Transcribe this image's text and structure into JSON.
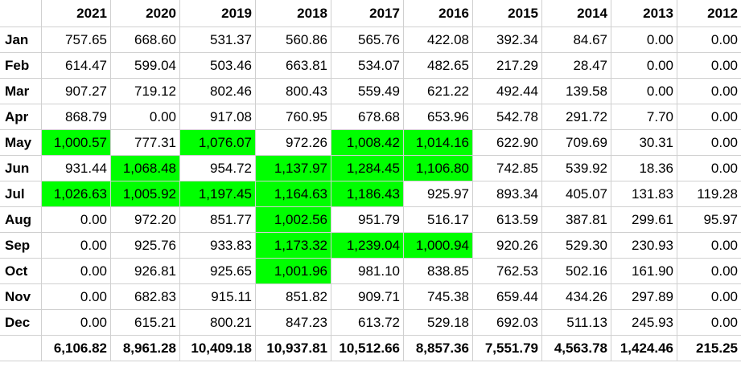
{
  "table": {
    "highlight_color": "#00ff00",
    "years": [
      "2021",
      "2020",
      "2019",
      "2018",
      "2017",
      "2016",
      "2015",
      "2014",
      "2013",
      "2012"
    ],
    "rows": [
      {
        "month": "Jan",
        "values": [
          "757.65",
          "668.60",
          "531.37",
          "560.86",
          "565.76",
          "422.08",
          "392.34",
          "84.67",
          "0.00",
          "0.00"
        ],
        "highlight": [
          false,
          false,
          false,
          false,
          false,
          false,
          false,
          false,
          false,
          false
        ]
      },
      {
        "month": "Feb",
        "values": [
          "614.47",
          "599.04",
          "503.46",
          "663.81",
          "534.07",
          "482.65",
          "217.29",
          "28.47",
          "0.00",
          "0.00"
        ],
        "highlight": [
          false,
          false,
          false,
          false,
          false,
          false,
          false,
          false,
          false,
          false
        ]
      },
      {
        "month": "Mar",
        "values": [
          "907.27",
          "719.12",
          "802.46",
          "800.43",
          "559.49",
          "621.22",
          "492.44",
          "139.58",
          "0.00",
          "0.00"
        ],
        "highlight": [
          false,
          false,
          false,
          false,
          false,
          false,
          false,
          false,
          false,
          false
        ]
      },
      {
        "month": "Apr",
        "values": [
          "868.79",
          "0.00",
          "917.08",
          "760.95",
          "678.68",
          "653.96",
          "542.78",
          "291.72",
          "7.70",
          "0.00"
        ],
        "highlight": [
          false,
          false,
          false,
          false,
          false,
          false,
          false,
          false,
          false,
          false
        ]
      },
      {
        "month": "May",
        "values": [
          "1,000.57",
          "777.31",
          "1,076.07",
          "972.26",
          "1,008.42",
          "1,014.16",
          "622.90",
          "709.69",
          "30.31",
          "0.00"
        ],
        "highlight": [
          true,
          false,
          true,
          false,
          true,
          true,
          false,
          false,
          false,
          false
        ]
      },
      {
        "month": "Jun",
        "values": [
          "931.44",
          "1,068.48",
          "954.72",
          "1,137.97",
          "1,284.45",
          "1,106.80",
          "742.85",
          "539.92",
          "18.36",
          "0.00"
        ],
        "highlight": [
          false,
          true,
          false,
          true,
          true,
          true,
          false,
          false,
          false,
          false
        ]
      },
      {
        "month": "Jul",
        "values": [
          "1,026.63",
          "1,005.92",
          "1,197.45",
          "1,164.63",
          "1,186.43",
          "925.97",
          "893.34",
          "405.07",
          "131.83",
          "119.28"
        ],
        "highlight": [
          true,
          true,
          true,
          true,
          true,
          false,
          false,
          false,
          false,
          false
        ]
      },
      {
        "month": "Aug",
        "values": [
          "0.00",
          "972.20",
          "851.77",
          "1,002.56",
          "951.79",
          "516.17",
          "613.59",
          "387.81",
          "299.61",
          "95.97"
        ],
        "highlight": [
          false,
          false,
          false,
          true,
          false,
          false,
          false,
          false,
          false,
          false
        ]
      },
      {
        "month": "Sep",
        "values": [
          "0.00",
          "925.76",
          "933.83",
          "1,173.32",
          "1,239.04",
          "1,000.94",
          "920.26",
          "529.30",
          "230.93",
          "0.00"
        ],
        "highlight": [
          false,
          false,
          false,
          true,
          true,
          true,
          false,
          false,
          false,
          false
        ]
      },
      {
        "month": "Oct",
        "values": [
          "0.00",
          "926.81",
          "925.65",
          "1,001.96",
          "981.10",
          "838.85",
          "762.53",
          "502.16",
          "161.90",
          "0.00"
        ],
        "highlight": [
          false,
          false,
          false,
          true,
          false,
          false,
          false,
          false,
          false,
          false
        ]
      },
      {
        "month": "Nov",
        "values": [
          "0.00",
          "682.83",
          "915.11",
          "851.82",
          "909.71",
          "745.38",
          "659.44",
          "434.26",
          "297.89",
          "0.00"
        ],
        "highlight": [
          false,
          false,
          false,
          false,
          false,
          false,
          false,
          false,
          false,
          false
        ]
      },
      {
        "month": "Dec",
        "values": [
          "0.00",
          "615.21",
          "800.21",
          "847.23",
          "613.72",
          "529.18",
          "692.03",
          "511.13",
          "245.93",
          "0.00"
        ],
        "highlight": [
          false,
          false,
          false,
          false,
          false,
          false,
          false,
          false,
          false,
          false
        ]
      }
    ],
    "totals": [
      "6,106.82",
      "8,961.28",
      "10,409.18",
      "10,937.81",
      "10,512.66",
      "8,857.36",
      "7,551.79",
      "4,563.78",
      "1,424.46",
      "215.25"
    ]
  }
}
